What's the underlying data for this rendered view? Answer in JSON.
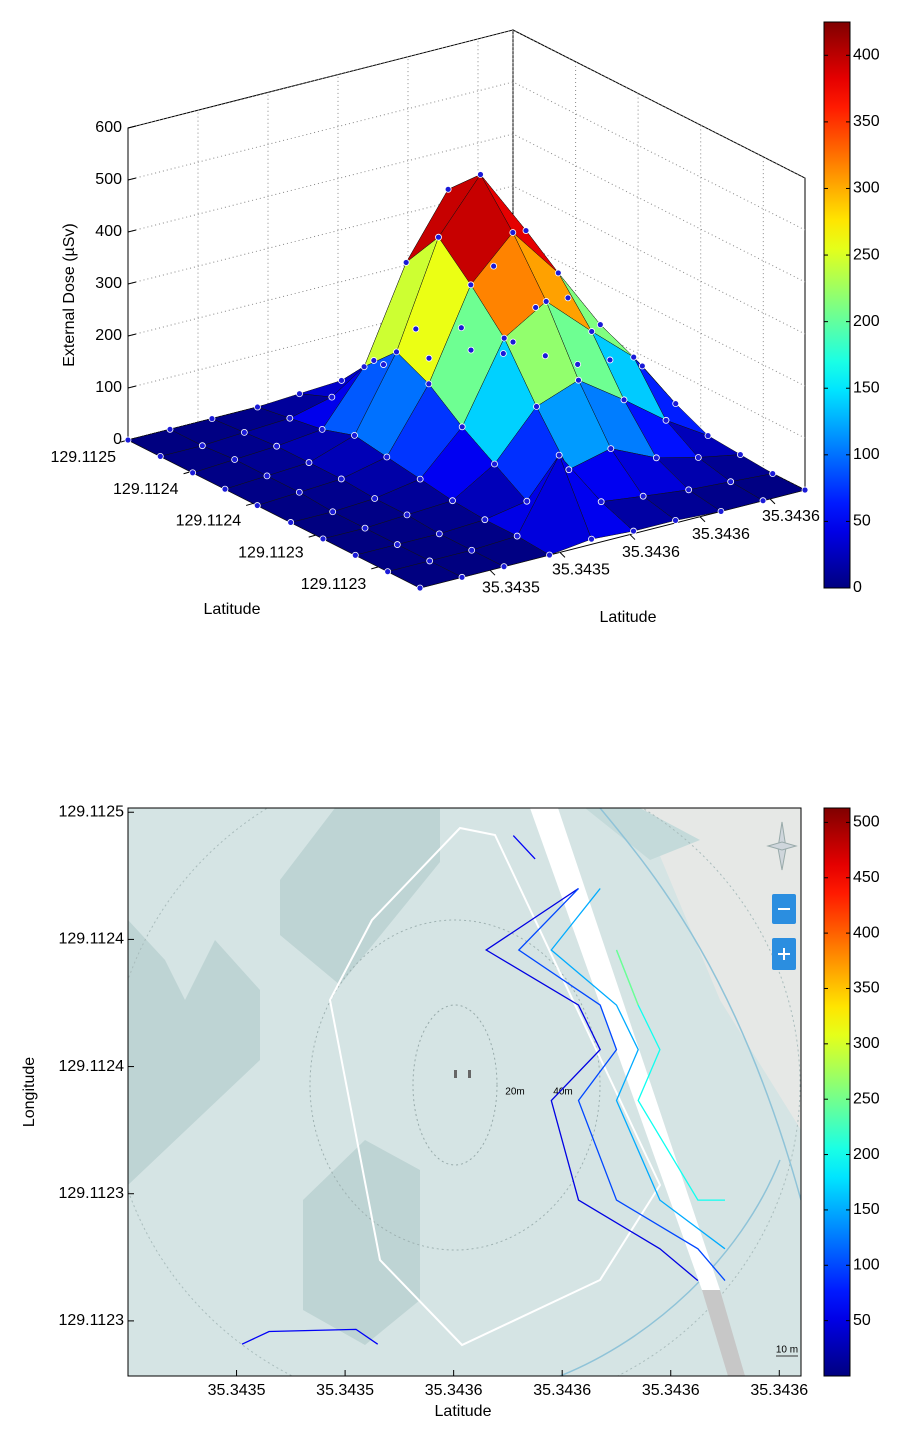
{
  "chart_data": [
    {
      "type": "surface",
      "zlabel": "External Dose (µSv)",
      "xlabel": "Latitude",
      "ylabel": "Latitude",
      "xlim": [
        129.1125,
        129.11222
      ],
      "xticks": [
        {
          "value": 129.1125,
          "label": "129.1125"
        },
        {
          "value": 129.11244,
          "label": "129.1124"
        },
        {
          "value": 129.11238,
          "label": "129.1124"
        },
        {
          "value": 129.11232,
          "label": "129.1123"
        },
        {
          "value": 129.11226,
          "label": "129.1123"
        }
      ],
      "ylim": [
        35.3435,
        35.34361
      ],
      "yticks": [
        {
          "value": 35.34352,
          "label": "35.3435"
        },
        {
          "value": 35.34354,
          "label": "35.3435"
        },
        {
          "value": 35.34356,
          "label": "35.3436"
        },
        {
          "value": 35.34358,
          "label": "35.3436"
        },
        {
          "value": 35.3436,
          "label": "35.3436"
        }
      ],
      "zlim": [
        0,
        600
      ],
      "zticks": [
        0,
        100,
        200,
        300,
        400,
        500,
        600
      ],
      "x": [
        129.1125,
        129.112469,
        129.112438,
        129.112407,
        129.112376,
        129.112344,
        129.112313,
        129.112282,
        129.112251,
        129.11222
      ],
      "y": [
        35.3435,
        35.343512,
        35.343524,
        35.343537,
        35.343549,
        35.343561,
        35.343573,
        35.343586,
        35.343598,
        35.34361
      ],
      "z": [
        [
          0,
          0,
          0,
          0,
          5,
          10,
          20,
          10,
          5,
          0
        ],
        [
          0,
          0,
          5,
          10,
          30,
          80,
          120,
          100,
          30,
          5
        ],
        [
          0,
          5,
          10,
          20,
          120,
          300,
          420,
          250,
          150,
          20
        ],
        [
          0,
          5,
          10,
          40,
          180,
          380,
          480,
          350,
          200,
          60
        ],
        [
          0,
          5,
          10,
          30,
          150,
          320,
          400,
          300,
          180,
          80
        ],
        [
          0,
          0,
          5,
          20,
          100,
          250,
          300,
          220,
          150,
          40
        ],
        [
          0,
          0,
          5,
          10,
          60,
          150,
          180,
          120,
          60,
          10
        ],
        [
          0,
          0,
          0,
          5,
          20,
          60,
          80,
          40,
          20,
          5
        ],
        [
          0,
          0,
          0,
          5,
          140,
          30,
          20,
          10,
          5,
          0
        ],
        [
          0,
          0,
          0,
          0,
          10,
          5,
          5,
          0,
          0,
          0
        ]
      ],
      "clim": [
        0,
        425
      ],
      "cticks": [
        0,
        50,
        100,
        150,
        200,
        250,
        300,
        350,
        400
      ],
      "colormap": "jet",
      "grid": true
    },
    {
      "type": "contour",
      "xlabel": "Latitude",
      "ylabel": "Longitude",
      "xlim": [
        35.34348,
        35.343604
      ],
      "xticks": [
        {
          "value": 35.3435,
          "label": "35.3435"
        },
        {
          "value": 35.34352,
          "label": "35.3435"
        },
        {
          "value": 35.34354,
          "label": "35.3436"
        },
        {
          "value": 35.34356,
          "label": "35.3436"
        },
        {
          "value": 35.34358,
          "label": "35.3436"
        },
        {
          "value": 35.3436,
          "label": "35.3436"
        }
      ],
      "ylim": [
        129.112234,
        129.112502
      ],
      "yticks": [
        {
          "value": 129.1125,
          "label": "129.1125"
        },
        {
          "value": 129.11244,
          "label": "129.1124"
        },
        {
          "value": 129.11238,
          "label": "129.1124"
        },
        {
          "value": 129.11232,
          "label": "129.1123"
        },
        {
          "value": 129.11226,
          "label": "129.1123"
        }
      ],
      "clim": [
        0,
        513
      ],
      "cticks": [
        50,
        100,
        150,
        200,
        250,
        300,
        350,
        400,
        450,
        500
      ],
      "colormap": "jet",
      "map_labels": [
        "20m",
        "40m",
        "10 m"
      ],
      "contours": [
        {
          "level": 50,
          "x": [
            35.343563,
            35.343546,
            35.343563,
            35.343567,
            35.343558,
            35.343563,
            35.343578,
            35.343585
          ],
          "y": [
            129.112464,
            129.112435,
            129.112409,
            129.112388,
            129.112364,
            129.112317,
            129.112294,
            129.112279
          ]
        },
        {
          "level": 100,
          "x": [
            35.343563,
            35.343552,
            35.343567,
            35.34357,
            35.343563,
            35.34357,
            35.343585,
            35.34359
          ],
          "y": [
            129.112464,
            129.112435,
            129.112409,
            129.112388,
            129.112364,
            129.112317,
            129.112294,
            129.112279
          ]
        },
        {
          "level": 150,
          "x": [
            35.343567,
            35.343558,
            35.34357,
            35.343574,
            35.34357,
            35.343578,
            35.34359
          ],
          "y": [
            129.112464,
            129.112435,
            129.112409,
            129.112388,
            129.112364,
            129.112317,
            129.112294
          ]
        },
        {
          "level": 200,
          "x": [
            35.34357,
            35.343574,
            35.343578,
            35.343574,
            35.343585,
            35.34359
          ],
          "y": [
            129.112435,
            129.112409,
            129.112388,
            129.112364,
            129.112317,
            129.112317
          ]
        },
        {
          "level": 250,
          "x": [
            35.34357,
            35.343574
          ],
          "y": [
            129.112435,
            129.112409
          ]
        },
        {
          "level": 60,
          "x": [
            35.343501,
            35.343506,
            35.343522,
            35.343526
          ],
          "y": [
            129.112249,
            129.112255,
            129.112256,
            129.112249
          ]
        },
        {
          "level": 60,
          "x": [
            35.343551,
            35.343555
          ],
          "y": [
            129.112489,
            129.112478
          ]
        }
      ]
    }
  ]
}
